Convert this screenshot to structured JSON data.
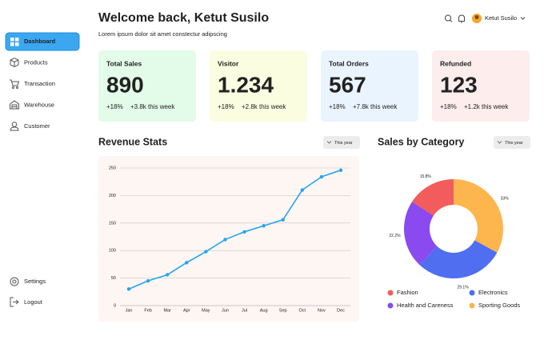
{
  "sidebar": {
    "nav": [
      "Dashboard",
      "Products",
      "Transaction",
      "Warehouse",
      "Customer"
    ],
    "bottom": [
      "Settings",
      "Logout"
    ]
  },
  "header": {
    "title": "Welcome back, Ketut Susilo",
    "subtitle": "Lorem ipsum dolor sit amet constectur adipscing",
    "user": "Ketut Susilo"
  },
  "cards": [
    {
      "title": "Total Sales",
      "value": "890",
      "change": "+18%",
      "week": "+3.8k this week"
    },
    {
      "title": "Visitor",
      "value": "1.234",
      "change": "+18%",
      "week": "+2.8k this week"
    },
    {
      "title": "Total Orders",
      "value": "567",
      "change": "+18%",
      "week": "+7.8k this week"
    },
    {
      "title": "Refunded",
      "value": "123",
      "change": "+18%",
      "week": "+1.2k this week"
    }
  ],
  "chart_data": [
    {
      "type": "line",
      "title": "Revenue Stats",
      "menu": "This year",
      "categories": [
        "Jan",
        "Feb",
        "Mar",
        "Apr",
        "May",
        "Jun",
        "Jul",
        "Aug",
        "Sep",
        "Oct",
        "Nov",
        "Dec"
      ],
      "values": [
        30,
        45,
        56,
        78,
        98,
        120,
        134,
        145,
        156,
        210,
        234,
        246
      ],
      "color": "#27a4ec",
      "ylim": [
        0,
        250
      ],
      "yticks": [
        0,
        50,
        100,
        150,
        200,
        250
      ],
      "grid": true
    },
    {
      "type": "donut",
      "title": "Sales by Category",
      "menu": "This year",
      "categories": [
        "Fashion",
        "Electronics",
        "Health and Careness",
        "Sporting Goods"
      ],
      "values": [
        15.8,
        29.1,
        22.2,
        33
      ],
      "value_labels": [
        "15.8%",
        "29.1%",
        "22.2%",
        "33%"
      ],
      "colors": [
        "#f25c5c",
        "#4f6ef0",
        "#8a4af0",
        "#fdb54d"
      ]
    }
  ]
}
